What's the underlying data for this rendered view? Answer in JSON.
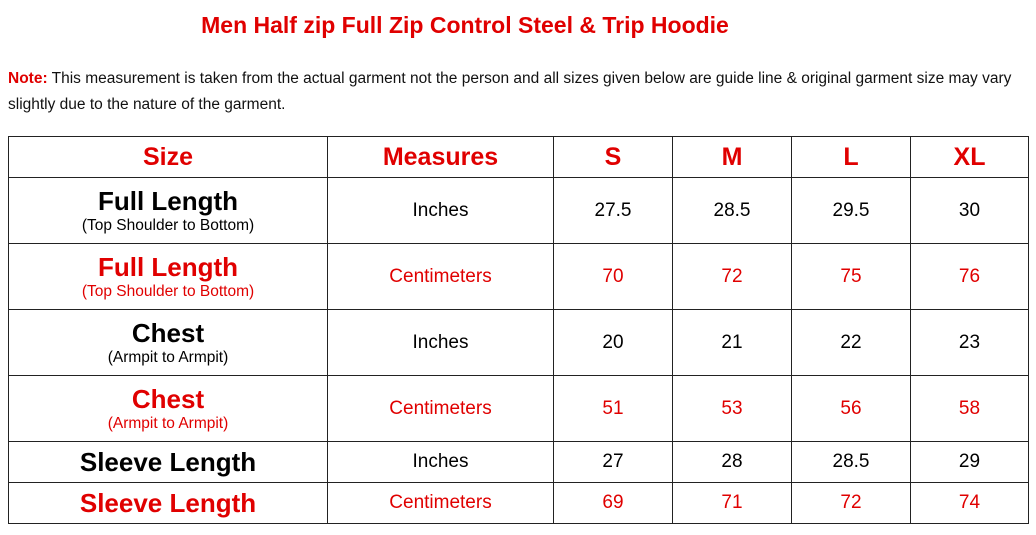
{
  "title": "Men Half zip Full Zip Control Steel & Trip Hoodie",
  "note": {
    "label": "Note:",
    "text": "This measurement is taken from the actual garment not the person and all sizes given below are guide line & original garment size may vary slightly due to the nature of the garment."
  },
  "table": {
    "headers": [
      "Size",
      "Measures",
      "S",
      "M",
      "L",
      "XL"
    ],
    "rows": [
      {
        "name": "Full Length",
        "sub": "(Top Shoulder to Bottom)",
        "unit": "Inches",
        "values": [
          "27.5",
          "28.5",
          "29.5",
          "30"
        ],
        "color": "black"
      },
      {
        "name": "Full Length",
        "sub": "(Top Shoulder to Bottom)",
        "unit": "Centimeters",
        "values": [
          "70",
          "72",
          "75",
          "76"
        ],
        "color": "red"
      },
      {
        "name": "Chest",
        "sub": "(Armpit to Armpit)",
        "unit": "Inches",
        "values": [
          "20",
          "21",
          "22",
          "23"
        ],
        "color": "black"
      },
      {
        "name": "Chest",
        "sub": "(Armpit to Armpit)",
        "unit": "Centimeters",
        "values": [
          "51",
          "53",
          "56",
          "58"
        ],
        "color": "red"
      },
      {
        "name": "Sleeve Length",
        "unit": "Inches",
        "values": [
          "27",
          "28",
          "28.5",
          "29"
        ],
        "color": "black"
      },
      {
        "name": "Sleeve Length",
        "unit": "Centimeters",
        "values": [
          "69",
          "71",
          "72",
          "74"
        ],
        "color": "red"
      }
    ]
  },
  "colors": {
    "accent": "#e00000",
    "text": "#000000",
    "border": "#222222"
  }
}
